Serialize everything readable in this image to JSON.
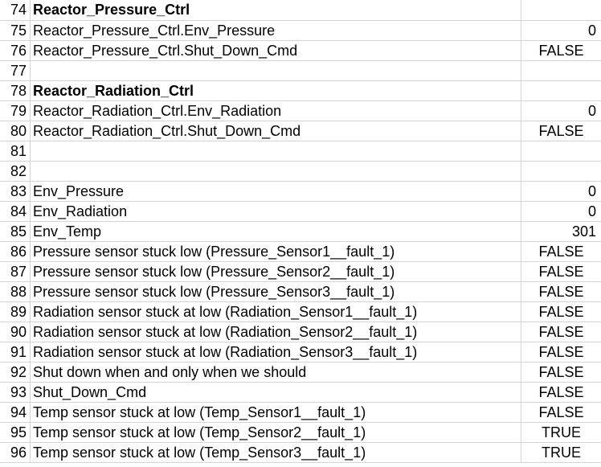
{
  "rows": [
    {
      "num": "74",
      "a": "Reactor_Pressure_Ctrl",
      "b": "",
      "bold": true,
      "btype": "num"
    },
    {
      "num": "75",
      "a": "Reactor_Pressure_Ctrl.Env_Pressure",
      "b": "0",
      "bold": false,
      "btype": "num"
    },
    {
      "num": "76",
      "a": "Reactor_Pressure_Ctrl.Shut_Down_Cmd",
      "b": "FALSE",
      "bold": false,
      "btype": "bool"
    },
    {
      "num": "77",
      "a": "",
      "b": "",
      "bold": false,
      "btype": "num"
    },
    {
      "num": "78",
      "a": "Reactor_Radiation_Ctrl",
      "b": "",
      "bold": true,
      "btype": "num"
    },
    {
      "num": "79",
      "a": "Reactor_Radiation_Ctrl.Env_Radiation",
      "b": "0",
      "bold": false,
      "btype": "num"
    },
    {
      "num": "80",
      "a": "Reactor_Radiation_Ctrl.Shut_Down_Cmd",
      "b": "FALSE",
      "bold": false,
      "btype": "bool"
    },
    {
      "num": "81",
      "a": "",
      "b": "",
      "bold": false,
      "btype": "num"
    },
    {
      "num": "82",
      "a": "",
      "b": "",
      "bold": false,
      "btype": "num"
    },
    {
      "num": "83",
      "a": "Env_Pressure",
      "b": "0",
      "bold": false,
      "btype": "num"
    },
    {
      "num": "84",
      "a": "Env_Radiation",
      "b": "0",
      "bold": false,
      "btype": "num"
    },
    {
      "num": "85",
      "a": "Env_Temp",
      "b": "301",
      "bold": false,
      "btype": "num"
    },
    {
      "num": "86",
      "a": "Pressure sensor stuck low (Pressure_Sensor1__fault_1)",
      "b": "FALSE",
      "bold": false,
      "btype": "bool"
    },
    {
      "num": "87",
      "a": "Pressure sensor stuck low (Pressure_Sensor2__fault_1)",
      "b": "FALSE",
      "bold": false,
      "btype": "bool"
    },
    {
      "num": "88",
      "a": "Pressure sensor stuck low (Pressure_Sensor3__fault_1)",
      "b": "FALSE",
      "bold": false,
      "btype": "bool"
    },
    {
      "num": "89",
      "a": "Radiation sensor stuck at low (Radiation_Sensor1__fault_1)",
      "b": "FALSE",
      "bold": false,
      "btype": "bool"
    },
    {
      "num": "90",
      "a": "Radiation sensor stuck at low (Radiation_Sensor2__fault_1)",
      "b": "FALSE",
      "bold": false,
      "btype": "bool"
    },
    {
      "num": "91",
      "a": "Radiation sensor stuck at low (Radiation_Sensor3__fault_1)",
      "b": "FALSE",
      "bold": false,
      "btype": "bool"
    },
    {
      "num": "92",
      "a": "Shut down when and only when we should",
      "b": "FALSE",
      "bold": false,
      "btype": "bool"
    },
    {
      "num": "93",
      "a": "Shut_Down_Cmd",
      "b": "FALSE",
      "bold": false,
      "btype": "bool"
    },
    {
      "num": "94",
      "a": "Temp sensor stuck at low (Temp_Sensor1__fault_1)",
      "b": "FALSE",
      "bold": false,
      "btype": "bool"
    },
    {
      "num": "95",
      "a": "Temp sensor stuck at low (Temp_Sensor2__fault_1)",
      "b": "TRUE",
      "bold": false,
      "btype": "bool"
    },
    {
      "num": "96",
      "a": "Temp sensor stuck at low (Temp_Sensor3__fault_1)",
      "b": "TRUE",
      "bold": false,
      "btype": "bool"
    }
  ]
}
